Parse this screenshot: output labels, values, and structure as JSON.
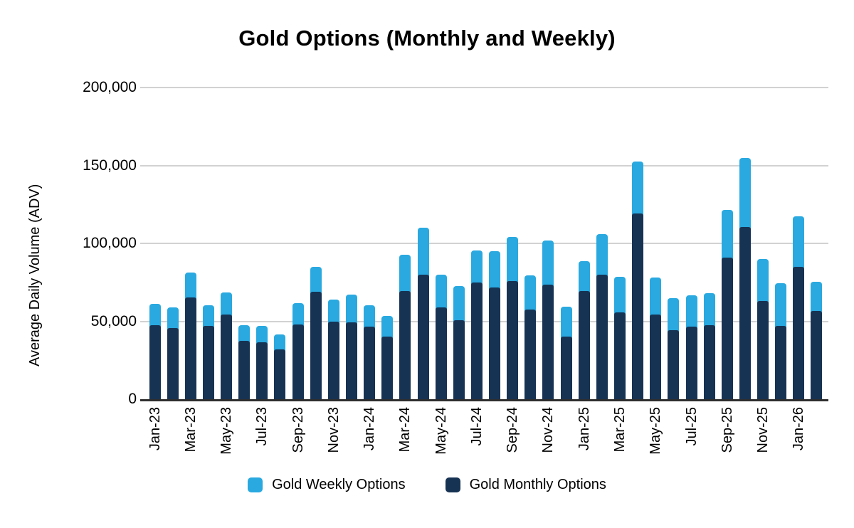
{
  "colors": {
    "background": "#FFFFFF",
    "gridline": "#D2D2D2",
    "axis_line": "#2E2E2E",
    "text": "#000000",
    "weekly": "#29A9E0",
    "monthly": "#173354"
  },
  "chart_data": {
    "type": "bar",
    "stacked": true,
    "title": "Gold Options (Monthly and Weekly)",
    "xlabel": "",
    "ylabel": "Average Daily Volume (ADV)",
    "ylim": [
      0,
      200000
    ],
    "y_ticks": [
      0,
      50000,
      100000,
      150000,
      200000
    ],
    "y_tick_labels": [
      "0",
      "50,000",
      "100,000",
      "150,000",
      "200,000"
    ],
    "grid": "horizontal",
    "legend_position": "bottom",
    "categories": [
      "Jan-23",
      "Feb-23",
      "Mar-23",
      "Apr-23",
      "May-23",
      "Jun-23",
      "Jul-23",
      "Aug-23",
      "Sep-23",
      "Oct-23",
      "Nov-23",
      "Dec-23",
      "Jan-24",
      "Feb-24",
      "Mar-24",
      "Apr-24",
      "May-24",
      "Jun-24",
      "Jul-24",
      "Aug-24",
      "Sep-24",
      "Oct-24",
      "Nov-24",
      "Dec-24",
      "Jan-25",
      "Feb-25",
      "Mar-25",
      "Apr-25",
      "May-25",
      "Jun-25",
      "Jul-25",
      "Aug-25",
      "Sep-25",
      "Oct-25",
      "Nov-25",
      "Dec-25",
      "Jan-26",
      "Feb-26"
    ],
    "x_tick_labels": [
      "Jan-23",
      "Mar-23",
      "May-23",
      "Jul-23",
      "Sep-23",
      "Nov-23",
      "Jan-24",
      "Mar-24",
      "May-24",
      "Jul-24",
      "Sep-24",
      "Nov-24",
      "Jan-25",
      "Mar-25",
      "May-25",
      "Jul-25",
      "Sep-25",
      "Nov-25",
      "Jan-26"
    ],
    "x_tick_every": 2,
    "series": [
      {
        "name": "Gold Monthly Options",
        "color": "#173354",
        "values": [
          47500,
          45500,
          65500,
          47000,
          54500,
          37500,
          36500,
          32000,
          48000,
          69000,
          50000,
          49500,
          46500,
          40000,
          69500,
          80000,
          59000,
          50500,
          75000,
          71500,
          76000,
          57500,
          73500,
          40000,
          69500,
          80000,
          55500,
          119000,
          54500,
          44500,
          46500,
          47500,
          91000,
          110500,
          63000,
          47000,
          85000,
          56500
        ]
      },
      {
        "name": "Gold Weekly Options",
        "color": "#29A9E0",
        "values": [
          13500,
          13500,
          16000,
          13500,
          14000,
          10000,
          10500,
          9500,
          13500,
          16000,
          14000,
          17500,
          14000,
          13500,
          23000,
          30000,
          21000,
          22000,
          20500,
          23500,
          28000,
          22000,
          28500,
          19500,
          19000,
          26000,
          23000,
          33500,
          23500,
          20500,
          20000,
          20500,
          30500,
          44500,
          27000,
          27500,
          32500,
          19000
        ]
      }
    ],
    "legend_items": [
      {
        "label": "Gold Weekly Options",
        "color": "#29A9E0"
      },
      {
        "label": "Gold Monthly Options",
        "color": "#173354"
      }
    ]
  }
}
